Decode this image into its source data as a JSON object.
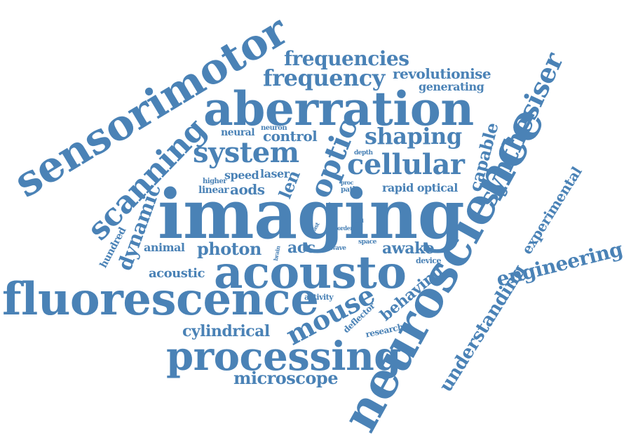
{
  "cloud": {
    "color": "#4a82b6",
    "background": "#ffffff",
    "words": [
      "imaging",
      "neuroscience",
      "aberration",
      "sensorimotor",
      "acousto",
      "fluorescence",
      "processing",
      "scanning",
      "system",
      "cellular",
      "optic",
      "synthesiser",
      "frequency",
      "frequencies",
      "shaping",
      "mouse",
      "engineering",
      "understanding",
      "dynamic",
      "revolutionise",
      "microscope",
      "photon",
      "cylindrical",
      "capable",
      "experimental",
      "behaving",
      "awake",
      "acc",
      "acoustic",
      "aods",
      "len",
      "generating",
      "control",
      "rapid optical",
      "animal",
      "neural",
      "speed",
      "laser",
      "hundred",
      "linear",
      "higher",
      "neuron",
      "depth",
      "research",
      "deflector",
      "activity",
      "device",
      "space",
      "wave",
      "path",
      "proc",
      "tool",
      "fast",
      "order",
      "brain",
      "line",
      "cell"
    ]
  }
}
